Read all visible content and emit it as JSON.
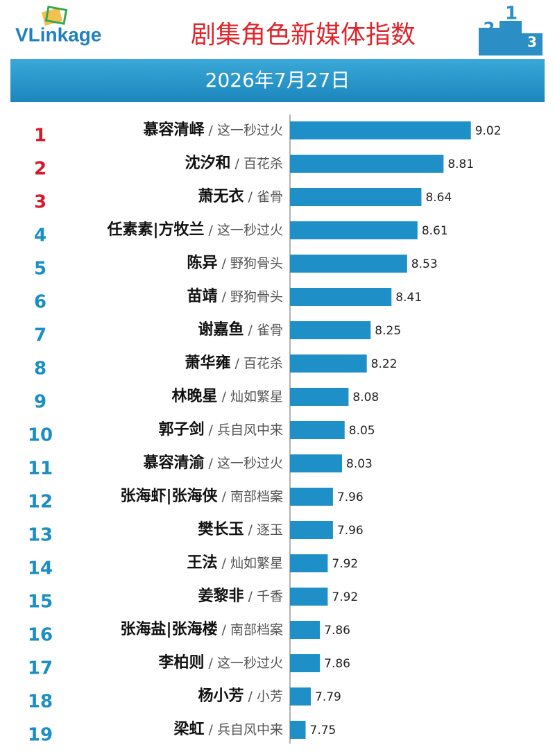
{
  "chart_data": {
    "type": "bar",
    "orientation": "horizontal",
    "logo": "VLinkage",
    "podium": [
      "2",
      "1",
      "3"
    ],
    "title": "剧集角色新媒体指数",
    "date": "2026年7月27日",
    "ranks": [
      1,
      2,
      3,
      4,
      5,
      6,
      7,
      8,
      9,
      10,
      11,
      12,
      13,
      14,
      15,
      16,
      17,
      18,
      19
    ],
    "top_rank_color": "#d6192b",
    "rank_color": "#1a8fc4",
    "categories": [
      "慕容清峄",
      "沈汐和",
      "萧无衣",
      "任素素|方牧兰",
      "陈异",
      "苗靖",
      "谢嘉鱼",
      "萧华雍",
      "林晚星",
      "郭子剑",
      "慕容清渝",
      "张海虾|张海侠",
      "樊长玉",
      "王法",
      "姜黎非",
      "张海盐|张海楼",
      "李柏则",
      "杨小芳",
      "梁虹"
    ],
    "shows": [
      "/ 这一秒过火",
      "/ 百花杀",
      "/ 雀骨",
      "/ 这一秒过火",
      "/ 野狗骨头",
      "/ 野狗骨头",
      "/ 雀骨",
      "/ 百花杀",
      "/ 灿如繁星",
      "/ 兵自风中来",
      "/ 这一秒过火",
      "/ 南部档案",
      "/ 逐玉",
      "/ 灿如繁星",
      "/ 千香",
      "/ 南部档案",
      "/ 这一秒过火",
      "/ 小芳",
      "/ 兵自风中来"
    ],
    "values": [
      9.02,
      8.81,
      8.64,
      8.61,
      8.53,
      8.41,
      8.25,
      8.22,
      8.08,
      8.05,
      8.03,
      7.96,
      7.96,
      7.92,
      7.92,
      7.86,
      7.86,
      7.79,
      7.75
    ],
    "color": "#1f8fc8",
    "xlim": [
      7.63,
      9.56
    ]
  }
}
